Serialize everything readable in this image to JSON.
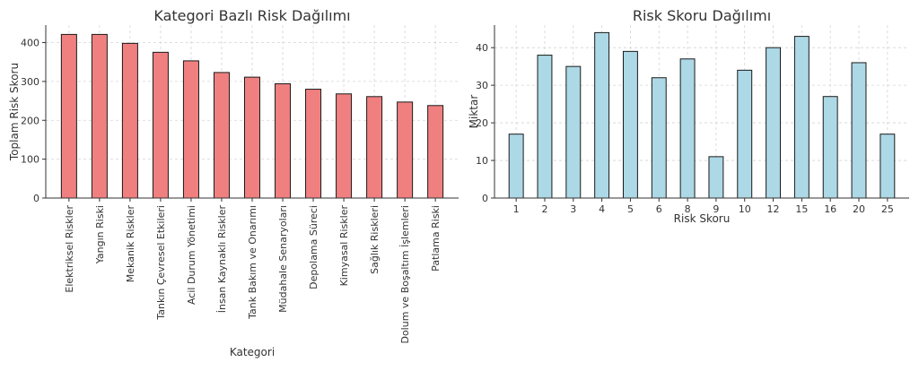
{
  "chart_data": [
    {
      "type": "bar",
      "title": "Kategori Bazlı Risk Dağılımı",
      "xlabel": "Kategori",
      "ylabel": "Toplam Risk Skoru",
      "categories": [
        "Elektriksel Riskler",
        "Yangın Riski",
        "Mekanik Riskler",
        "Tankın Çevresel Etkileri",
        "Acil Durum Yönetimi",
        "İnsan Kaynaklı Riskler",
        "Tank Bakım ve Onarımı",
        "Müdahale Senaryoları",
        "Depolama Süreci",
        "Kimyasal Riskler",
        "Sağlık Riskleri",
        "Dolum ve Boşaltım İşlemleri",
        "Patlama Riski"
      ],
      "values": [
        421,
        421,
        398,
        375,
        353,
        323,
        311,
        294,
        280,
        268,
        261,
        247,
        238
      ],
      "ylim": [
        0,
        445
      ],
      "yticks": [
        0,
        100,
        200,
        300,
        400
      ],
      "grid": true,
      "color": "#f08080"
    },
    {
      "type": "bar",
      "title": "Risk Skoru Dağılımı",
      "xlabel": "Risk Skoru",
      "ylabel": "Miktar",
      "categories": [
        "1",
        "2",
        "3",
        "4",
        "5",
        "6",
        "8",
        "9",
        "10",
        "12",
        "15",
        "16",
        "20",
        "25"
      ],
      "values": [
        17,
        38,
        35,
        44,
        39,
        32,
        37,
        11,
        34,
        40,
        43,
        27,
        36,
        17
      ],
      "ylim": [
        0,
        46
      ],
      "yticks": [
        0,
        10,
        20,
        30,
        40
      ],
      "grid": true,
      "color": "#add8e6"
    }
  ]
}
